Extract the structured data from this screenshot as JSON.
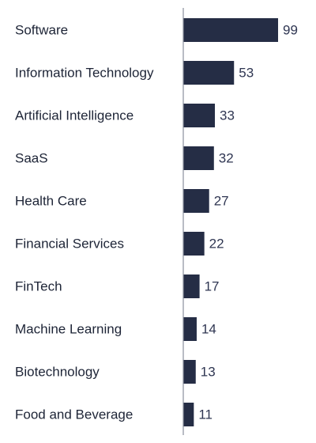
{
  "chart_data": {
    "type": "bar",
    "orientation": "horizontal",
    "categories": [
      "Software",
      "Information Technology",
      "Artificial Intelligence",
      "SaaS",
      "Health Care",
      "Financial Services",
      "FinTech",
      "Machine Learning",
      "Biotechnology",
      "Food and Beverage"
    ],
    "values": [
      99,
      53,
      33,
      32,
      27,
      22,
      17,
      14,
      13,
      11
    ],
    "xlim": [
      0,
      99
    ],
    "grid": false,
    "legend": "none",
    "bar_color": "#252d45",
    "axis_color": "#8a8f9c",
    "label_color": "#1d2436",
    "value_label_color": "#2f3652"
  }
}
